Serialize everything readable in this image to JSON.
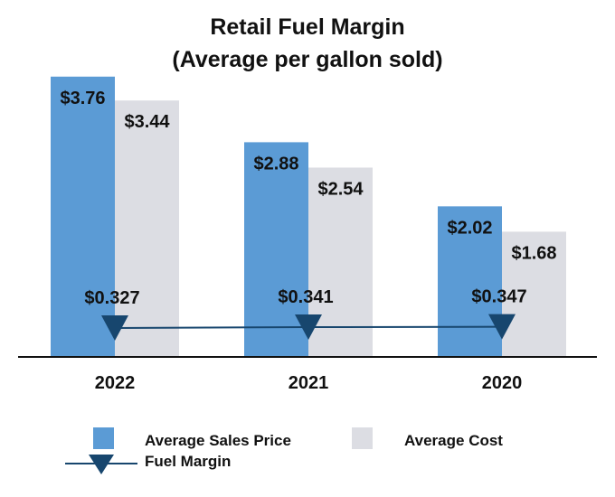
{
  "chart_data": {
    "type": "bar",
    "title": "Retail Fuel Margin",
    "subtitle": "(Average per gallon sold)",
    "categories": [
      "2022",
      "2021",
      "2020"
    ],
    "series": [
      {
        "name": "Average Sales Price",
        "kind": "bar",
        "color": "#5b9bd5",
        "values": [
          3.76,
          2.88,
          2.02
        ],
        "labels": [
          "$3.76",
          "$2.88",
          "$2.02"
        ]
      },
      {
        "name": "Average Cost",
        "kind": "bar",
        "color": "#dcdde3",
        "values": [
          3.44,
          2.54,
          1.68
        ],
        "labels": [
          "$3.44",
          "$2.54",
          "$1.68"
        ]
      },
      {
        "name": "Fuel Margin",
        "kind": "line",
        "marker": "triangle-down",
        "color": "#17466e",
        "values": [
          0.327,
          0.341,
          0.347
        ],
        "labels": [
          "$0.327",
          "$0.341",
          "$0.347"
        ]
      }
    ],
    "ylim": [
      0,
      4.0
    ],
    "grid": false,
    "legend_position": "bottom"
  }
}
